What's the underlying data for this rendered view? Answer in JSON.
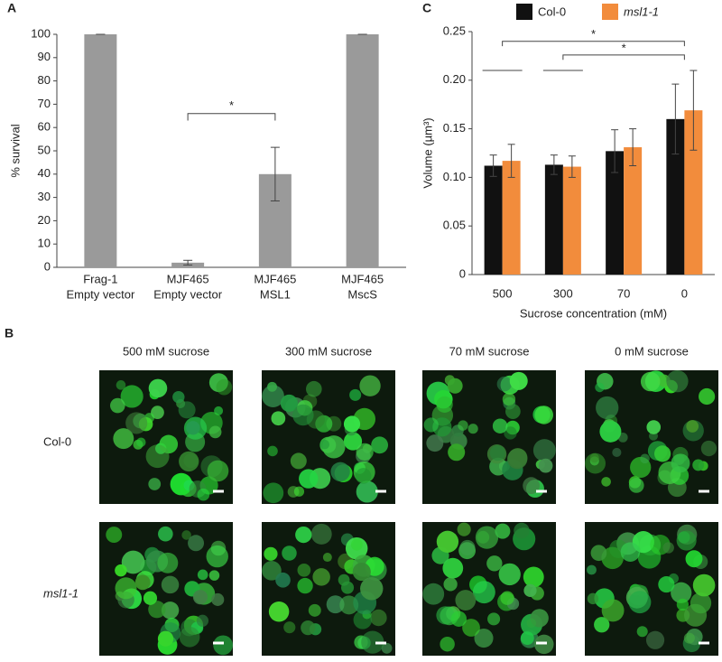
{
  "chart_data": [
    {
      "type": "bar",
      "panel_label": "A",
      "ylabel": "% survival",
      "categories": [
        [
          "Frag-1",
          "Empty vector"
        ],
        [
          "MJF465",
          "Empty vector"
        ],
        [
          "MJF465",
          "MSL1"
        ],
        [
          "MJF465",
          "MscS"
        ]
      ],
      "values": [
        100,
        2,
        40,
        100
      ],
      "errors": [
        0,
        1,
        11.5,
        0
      ],
      "color": "#9a9a9a",
      "ylim": [
        0,
        100
      ],
      "yticks": [
        0,
        10,
        20,
        30,
        40,
        50,
        60,
        70,
        80,
        90,
        100
      ],
      "annotations": [
        "*"
      ]
    },
    {
      "type": "grouped-bar",
      "panel_label": "C",
      "ylabel": "Volume (µm³)",
      "xlabel": "Sucrose concentration (mM)",
      "categories": [
        "500",
        "300",
        "70",
        "0"
      ],
      "series": [
        {
          "name": "Col-0",
          "color": "#111111",
          "values": [
            0.112,
            0.113,
            0.127,
            0.16
          ],
          "errors": [
            0.011,
            0.01,
            0.022,
            0.036
          ]
        },
        {
          "name": "msl1-1",
          "color": "#f28c3c",
          "values": [
            0.117,
            0.111,
            0.131,
            0.169
          ],
          "errors": [
            0.017,
            0.011,
            0.019,
            0.041
          ]
        }
      ],
      "ylim": [
        0,
        0.25
      ],
      "yticks": [
        0,
        0.05,
        {
          "value": 0.1,
          "label": "0.10"
        },
        0.15,
        {
          "value": 0.2,
          "label": "0.20"
        },
        0.25
      ],
      "legend": "top",
      "annotations": [
        "*",
        "*"
      ]
    }
  ],
  "panel_b": {
    "label": "B",
    "columns": [
      "500 mM sucrose",
      "300 mM sucrose",
      "70 mM sucrose",
      "0 mM sucrose"
    ],
    "rows": [
      "Col-0",
      "msl1-1"
    ]
  }
}
